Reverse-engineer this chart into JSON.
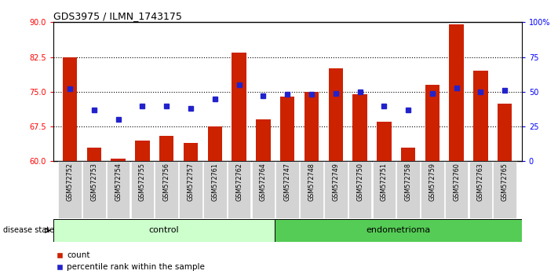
{
  "title": "GDS3975 / ILMN_1743175",
  "samples": [
    "GSM572752",
    "GSM572753",
    "GSM572754",
    "GSM572755",
    "GSM572756",
    "GSM572757",
    "GSM572761",
    "GSM572762",
    "GSM572764",
    "GSM572747",
    "GSM572748",
    "GSM572749",
    "GSM572750",
    "GSM572751",
    "GSM572758",
    "GSM572759",
    "GSM572760",
    "GSM572763",
    "GSM572765"
  ],
  "bar_values": [
    82.5,
    63.0,
    60.5,
    64.5,
    65.5,
    64.0,
    67.5,
    83.5,
    69.0,
    74.0,
    75.0,
    80.0,
    74.5,
    68.5,
    63.0,
    76.5,
    89.5,
    79.5,
    72.5
  ],
  "blue_percentile": [
    52,
    37,
    30,
    40,
    40,
    38,
    45,
    55,
    47,
    48,
    48,
    49,
    50,
    40,
    37,
    49,
    53,
    50,
    51
  ],
  "control_count": 9,
  "endometrioma_count": 10,
  "bar_color": "#cc2200",
  "blue_color": "#2222cc",
  "control_bg": "#ccffcc",
  "endometrioma_bg": "#55cc55",
  "sample_bg": "#d3d3d3",
  "ylim_left": [
    60,
    90
  ],
  "ylim_right": [
    0,
    100
  ],
  "yticks_left": [
    60,
    67.5,
    75,
    82.5,
    90
  ],
  "ytick_labels_right": [
    "0",
    "25",
    "50",
    "75",
    "100%"
  ],
  "yticks_right": [
    0,
    25,
    50,
    75,
    100
  ],
  "hlines": [
    67.5,
    75.0,
    82.5
  ],
  "legend_count": "count",
  "legend_pct": "percentile rank within the sample",
  "disease_state_label": "disease state",
  "control_label": "control",
  "endometrioma_label": "endometrioma"
}
